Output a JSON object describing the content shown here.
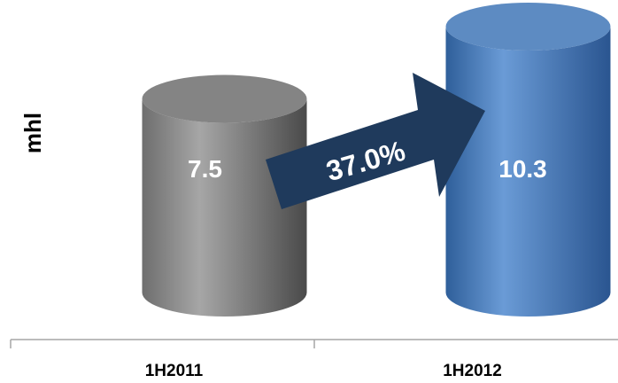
{
  "chart_data": {
    "type": "bar",
    "style": "3d-cylinder",
    "categories": [
      "1H2011",
      "1H2012"
    ],
    "values": [
      7.5,
      10.3
    ],
    "value_labels": [
      "7.5",
      "10.3"
    ],
    "ylabel": "mhl",
    "growth_label": "37.0%",
    "grid": false,
    "legend": "none",
    "colors": [
      "#7a7a7a",
      "#4f81bd"
    ],
    "arrow_color": "#1f3a5c"
  }
}
